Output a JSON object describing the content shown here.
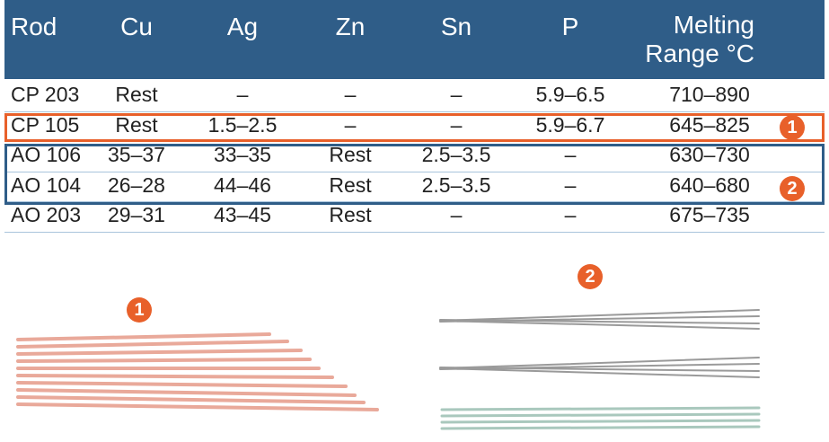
{
  "header": {
    "columns": [
      "Rod",
      "Cu",
      "Ag",
      "Zn",
      "Sn",
      "P",
      "Melting Range °C"
    ]
  },
  "table": {
    "rows": [
      [
        "CP 203",
        "Rest",
        "–",
        "–",
        "–",
        "5.9–6.5",
        "710–890"
      ],
      [
        "CP 105",
        "Rest",
        "1.5–2.5",
        "–",
        "–",
        "5.9–6.7",
        "645–825"
      ],
      [
        "AO 106",
        "35–37",
        "33–35",
        "Rest",
        "2.5–3.5",
        "–",
        "630–730"
      ],
      [
        "AO 104",
        "26–28",
        "44–46",
        "Rest",
        "2.5–3.5",
        "–",
        "640–680"
      ],
      [
        "AO 203",
        "29–31",
        "43–45",
        "Rest",
        "–",
        "–",
        "675–735"
      ]
    ]
  },
  "callouts": [
    "1",
    "2"
  ]
}
